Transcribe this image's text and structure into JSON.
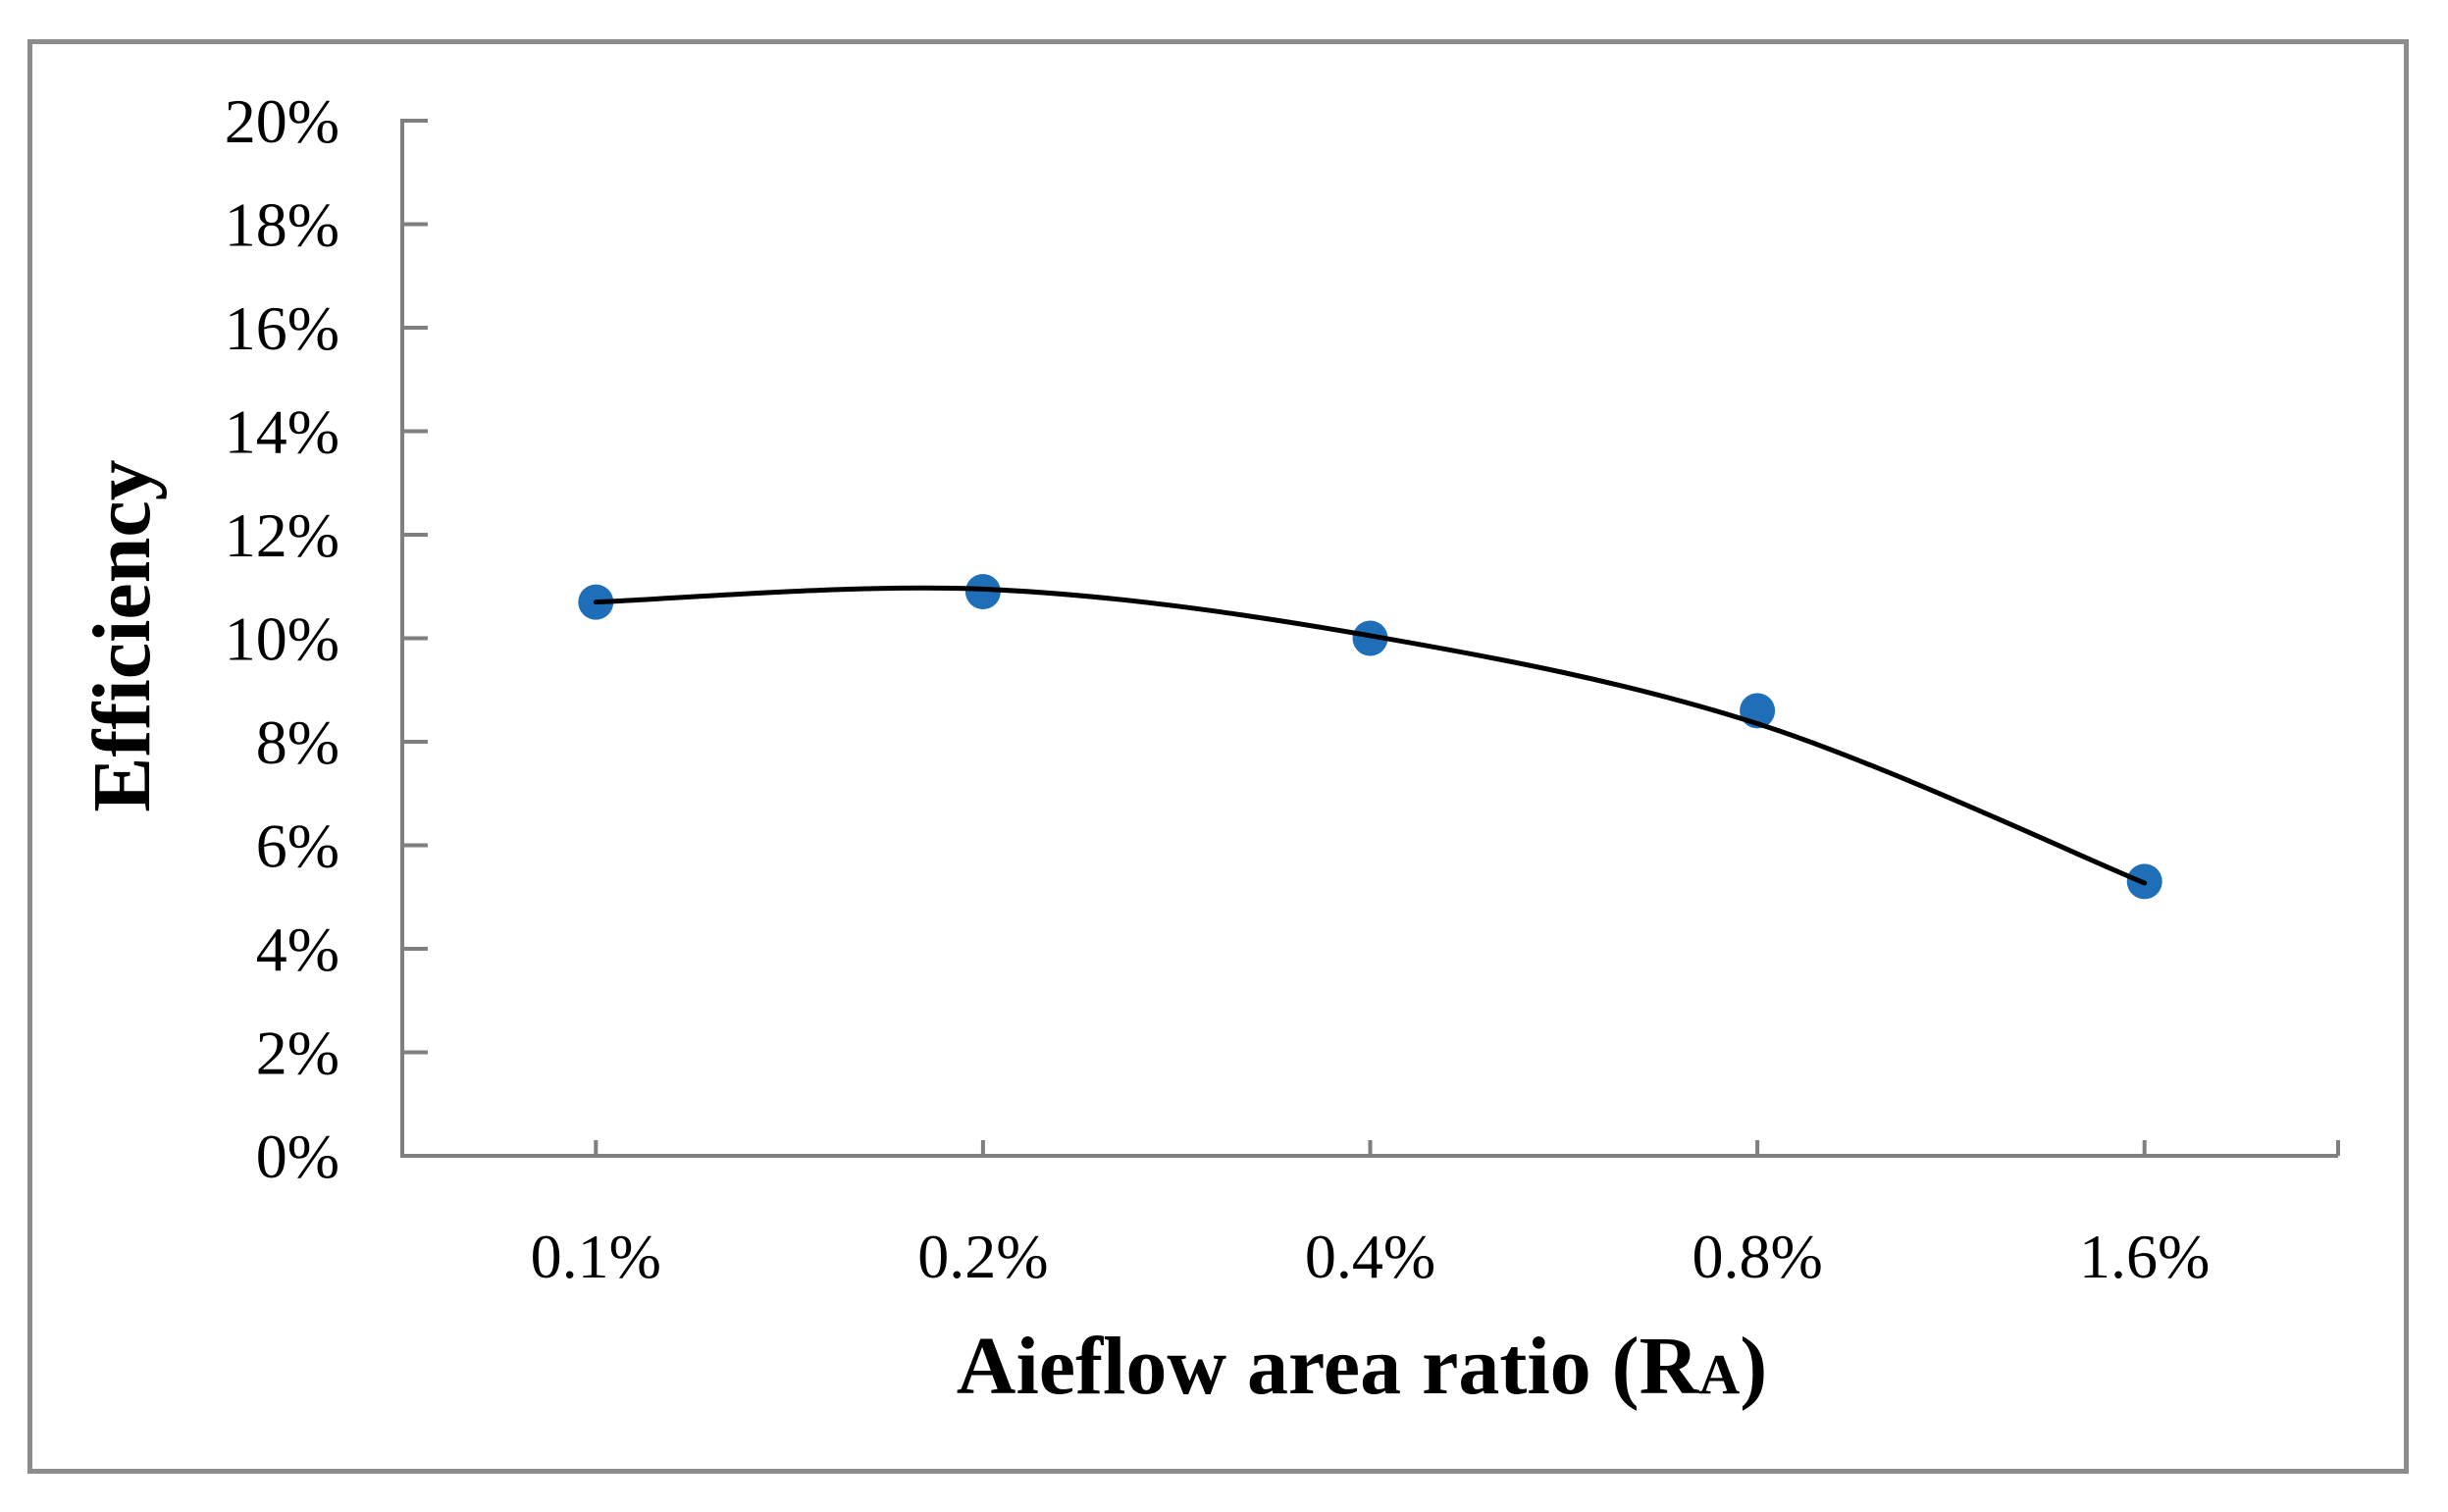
{
  "chart_data": {
    "type": "scatter",
    "title": "",
    "xlabel": "Aieflow area ratio (RA)",
    "xlabel_parts": {
      "prefix": "Aieflow area ratio (R",
      "subscript": "A",
      "suffix": ")"
    },
    "ylabel": "Efficiency",
    "categories": [
      "0.1%",
      "0.2%",
      "0.4%",
      "0.8%",
      "1.6%"
    ],
    "series": [
      {
        "name": "Efficiency",
        "values_percent": [
          10.7,
          10.9,
          10.0,
          8.6,
          5.3
        ]
      }
    ],
    "trend_curve_percent": [
      10.7,
      10.95,
      10.05,
      8.35,
      5.27
    ],
    "ylim_percent": [
      0,
      20
    ],
    "ytick_step_percent": 2,
    "ytick_labels": [
      "0%",
      "2%",
      "4%",
      "6%",
      "8%",
      "10%",
      "12%",
      "14%",
      "16%",
      "18%",
      "20%"
    ],
    "grid": "off",
    "legend": "none",
    "colors": {
      "marker": "#1e6fb8",
      "trend_line": "#000000",
      "axis": "#7f7f7f",
      "frame": "#8c8c8c",
      "text": "#000000"
    }
  }
}
